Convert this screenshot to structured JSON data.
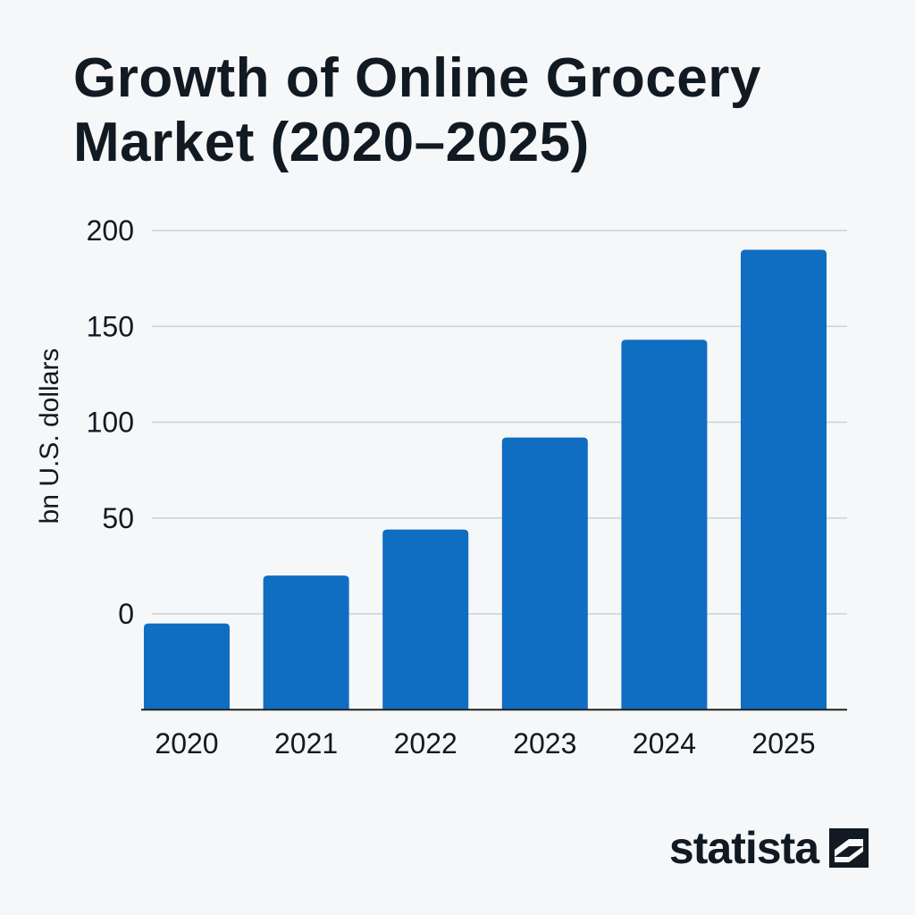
{
  "chart_data": {
    "type": "bar",
    "title_lines": [
      "Growth of Online Grocery",
      "Market (2020–2025)"
    ],
    "ylabel": "bn U.S. dollars",
    "xlabel": "",
    "categories": [
      "2020",
      "2021",
      "2022",
      "2023",
      "2024",
      "2025"
    ],
    "values": [
      -5,
      20,
      44,
      92,
      143,
      190
    ],
    "y_ticks": [
      "200",
      "150",
      "100",
      "50",
      "0"
    ],
    "y_tick_values": [
      200,
      150,
      100,
      50,
      0
    ],
    "ylim": [
      -50,
      200
    ],
    "grid": true,
    "bar_color": "#0f6dc2",
    "grid_color": "#c9d2da",
    "axis_color": "#222222"
  },
  "branding": {
    "logo_text": "statista",
    "logo_icon": "statista-logo-icon"
  }
}
